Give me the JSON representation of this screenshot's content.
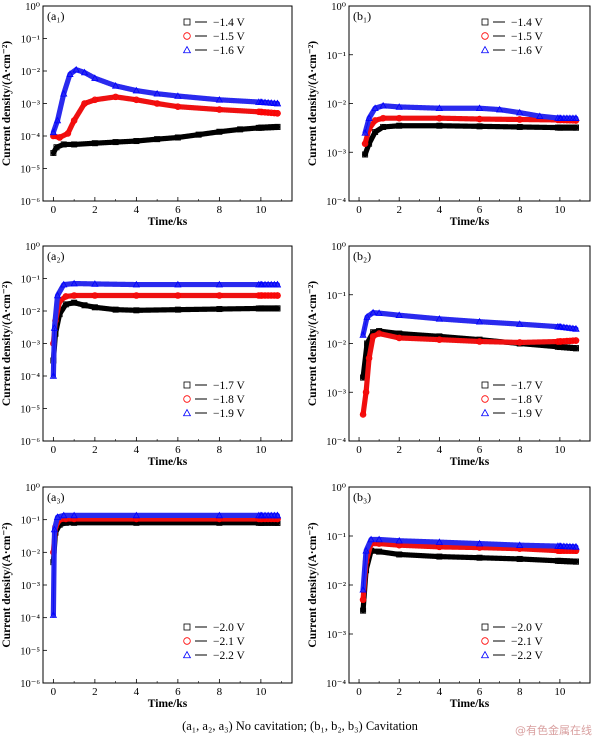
{
  "caption": "(a₁, a₂, a₃) No cavitation; (b₁, b₂, b₃) Cavitation",
  "watermark": "@有色金属在线",
  "colors": {
    "black": "#000000",
    "red": "#ff0000",
    "blue": "#0000ff",
    "black_fill": "#000000",
    "red_fill": "#ee1111",
    "blue_fill": "#2a2aee"
  },
  "markers": [
    "square",
    "circle",
    "triangle"
  ],
  "chart_data": [
    {
      "id": "a1",
      "panel_label": "(a₁)",
      "type": "scatter",
      "y_scale": "log",
      "xlabel": "Time/ks",
      "ylabel": "Current density/(A·cm⁻²)",
      "xlim": [
        -0.5,
        11.5
      ],
      "ylim_exp": [
        -6,
        0
      ],
      "x_ticks": [
        0,
        2,
        4,
        6,
        8,
        10
      ],
      "y_tick_labels": [
        "10⁻⁶",
        "10⁻⁵",
        "10⁻⁴",
        "10⁻³",
        "10⁻²",
        "10⁻¹",
        "10⁰"
      ],
      "legend": "top-right",
      "series": [
        {
          "name": "−1.4 V",
          "points": [
            [
              0,
              3e-05
            ],
            [
              0.15,
              4.5e-05
            ],
            [
              0.5,
              5.5e-05
            ],
            [
              1,
              5.5e-05
            ],
            [
              2,
              6e-05
            ],
            [
              3,
              6.5e-05
            ],
            [
              4,
              7e-05
            ],
            [
              5,
              8e-05
            ],
            [
              6,
              9e-05
            ],
            [
              7,
              0.00011
            ],
            [
              8,
              0.000135
            ],
            [
              9,
              0.00016
            ],
            [
              10,
              0.00018
            ],
            [
              10.8,
              0.00019
            ]
          ]
        },
        {
          "name": "−1.5 V",
          "points": [
            [
              0,
              0.0001
            ],
            [
              0.3,
              9e-05
            ],
            [
              0.7,
              0.00012
            ],
            [
              1,
              0.0003
            ],
            [
              1.5,
              0.001
            ],
            [
              2,
              0.0013
            ],
            [
              3,
              0.0016
            ],
            [
              4,
              0.0013
            ],
            [
              5,
              0.001
            ],
            [
              6,
              0.0008
            ],
            [
              8,
              0.00065
            ],
            [
              10,
              0.00055
            ],
            [
              10.8,
              0.0005
            ]
          ]
        },
        {
          "name": "−1.6 V",
          "points": [
            [
              0,
              0.00013
            ],
            [
              0.2,
              0.0003
            ],
            [
              0.5,
              0.002
            ],
            [
              0.8,
              0.008
            ],
            [
              1.1,
              0.011
            ],
            [
              1.5,
              0.009
            ],
            [
              2,
              0.006
            ],
            [
              3,
              0.0035
            ],
            [
              4,
              0.0025
            ],
            [
              5,
              0.002
            ],
            [
              6,
              0.0017
            ],
            [
              8,
              0.0013
            ],
            [
              10,
              0.0011
            ],
            [
              10.8,
              0.001
            ]
          ]
        }
      ]
    },
    {
      "id": "b1",
      "panel_label": "(b₁)",
      "type": "scatter",
      "y_scale": "log",
      "xlabel": "Time/ks",
      "ylabel": "Current density/(A·cm⁻²)",
      "xlim": [
        -0.5,
        11.5
      ],
      "ylim_exp": [
        -4,
        0
      ],
      "x_ticks": [
        0,
        2,
        4,
        6,
        8,
        10
      ],
      "y_tick_labels": [
        "10⁻⁴",
        "10⁻³",
        "10⁻²",
        "10⁻¹",
        "10⁰"
      ],
      "legend": "top-right",
      "series": [
        {
          "name": "−1.4 V",
          "points": [
            [
              0.3,
              0.0009
            ],
            [
              0.5,
              0.0015
            ],
            [
              0.8,
              0.0026
            ],
            [
              1.2,
              0.0033
            ],
            [
              2,
              0.0035
            ],
            [
              4,
              0.0035
            ],
            [
              6,
              0.0034
            ],
            [
              8,
              0.0033
            ],
            [
              10,
              0.0032
            ],
            [
              10.8,
              0.0032
            ]
          ]
        },
        {
          "name": "−1.5 V",
          "points": [
            [
              0.3,
              0.0015
            ],
            [
              0.5,
              0.003
            ],
            [
              0.8,
              0.0045
            ],
            [
              1.2,
              0.005
            ],
            [
              2,
              0.005
            ],
            [
              4,
              0.005
            ],
            [
              6,
              0.0048
            ],
            [
              8,
              0.0047
            ],
            [
              10,
              0.0046
            ],
            [
              10.8,
              0.0045
            ]
          ]
        },
        {
          "name": "−1.6 V",
          "points": [
            [
              0.3,
              0.0025
            ],
            [
              0.5,
              0.005
            ],
            [
              0.8,
              0.008
            ],
            [
              1.2,
              0.009
            ],
            [
              2,
              0.0085
            ],
            [
              4,
              0.008
            ],
            [
              6,
              0.008
            ],
            [
              7,
              0.0075
            ],
            [
              8,
              0.0065
            ],
            [
              9,
              0.0055
            ],
            [
              10,
              0.005
            ],
            [
              10.8,
              0.005
            ]
          ]
        }
      ]
    },
    {
      "id": "a2",
      "panel_label": "(a₂)",
      "type": "scatter",
      "y_scale": "log",
      "xlabel": "Time/ks",
      "ylabel": "Current density/(A·cm⁻²)",
      "xlim": [
        -0.5,
        11.5
      ],
      "ylim_exp": [
        -6,
        0
      ],
      "x_ticks": [
        0,
        2,
        4,
        6,
        8,
        10
      ],
      "y_tick_labels": [
        "10⁻⁶",
        "10⁻⁵",
        "10⁻⁴",
        "10⁻³",
        "10⁻²",
        "10⁻¹",
        "10⁰"
      ],
      "legend": "bottom-right",
      "series": [
        {
          "name": "−1.7 V",
          "points": [
            [
              0,
              0.0003
            ],
            [
              0.1,
              0.002
            ],
            [
              0.3,
              0.008
            ],
            [
              0.6,
              0.016
            ],
            [
              1,
              0.018
            ],
            [
              1.5,
              0.015
            ],
            [
              2,
              0.013
            ],
            [
              3,
              0.011
            ],
            [
              4,
              0.0105
            ],
            [
              6,
              0.011
            ],
            [
              8,
              0.0115
            ],
            [
              10,
              0.012
            ],
            [
              10.8,
              0.012
            ]
          ]
        },
        {
          "name": "−1.8 V",
          "points": [
            [
              0,
              0.001
            ],
            [
              0.1,
              0.005
            ],
            [
              0.3,
              0.02
            ],
            [
              0.6,
              0.028
            ],
            [
              1,
              0.03
            ],
            [
              2,
              0.03
            ],
            [
              4,
              0.03
            ],
            [
              6,
              0.03
            ],
            [
              8,
              0.03
            ],
            [
              10,
              0.03
            ],
            [
              10.8,
              0.03
            ]
          ]
        },
        {
          "name": "−1.9 V",
          "points": [
            [
              0,
              0.0001
            ],
            [
              0.05,
              0.003
            ],
            [
              0.2,
              0.03
            ],
            [
              0.5,
              0.065
            ],
            [
              1,
              0.07
            ],
            [
              2,
              0.068
            ],
            [
              4,
              0.065
            ],
            [
              6,
              0.065
            ],
            [
              8,
              0.065
            ],
            [
              10,
              0.065
            ],
            [
              10.8,
              0.065
            ]
          ]
        }
      ]
    },
    {
      "id": "b2",
      "panel_label": "(b₂)",
      "type": "scatter",
      "y_scale": "log",
      "xlabel": "Time/ks",
      "ylabel": "Current density/(A·cm⁻²)",
      "xlim": [
        -0.5,
        11.5
      ],
      "ylim_exp": [
        -4,
        0
      ],
      "x_ticks": [
        0,
        2,
        4,
        6,
        8,
        10
      ],
      "y_tick_labels": [
        "10⁻⁴",
        "10⁻³",
        "10⁻²",
        "10⁻¹",
        "10⁰"
      ],
      "legend": "bottom-right",
      "series": [
        {
          "name": "−1.7 V",
          "points": [
            [
              0.2,
              0.002
            ],
            [
              0.4,
              0.01
            ],
            [
              0.7,
              0.017
            ],
            [
              1,
              0.018
            ],
            [
              2,
              0.016
            ],
            [
              4,
              0.014
            ],
            [
              6,
              0.012
            ],
            [
              8,
              0.01
            ],
            [
              10,
              0.0085
            ],
            [
              10.8,
              0.008
            ]
          ]
        },
        {
          "name": "−1.8 V",
          "points": [
            [
              0.2,
              0.00035
            ],
            [
              0.35,
              0.001
            ],
            [
              0.5,
              0.005
            ],
            [
              0.7,
              0.014
            ],
            [
              1,
              0.016
            ],
            [
              2,
              0.013
            ],
            [
              4,
              0.012
            ],
            [
              6,
              0.011
            ],
            [
              8,
              0.0105
            ],
            [
              10,
              0.011
            ],
            [
              10.8,
              0.0115
            ]
          ]
        },
        {
          "name": "−1.9 V",
          "points": [
            [
              0.2,
              0.015
            ],
            [
              0.4,
              0.035
            ],
            [
              0.7,
              0.043
            ],
            [
              1,
              0.042
            ],
            [
              2,
              0.038
            ],
            [
              4,
              0.032
            ],
            [
              6,
              0.028
            ],
            [
              8,
              0.025
            ],
            [
              10,
              0.022
            ],
            [
              10.8,
              0.02
            ]
          ]
        }
      ]
    },
    {
      "id": "a3",
      "panel_label": "(a₃)",
      "type": "scatter",
      "y_scale": "log",
      "xlabel": "Time/ks",
      "ylabel": "Current density/(A·cm⁻²)",
      "xlim": [
        -0.5,
        11.5
      ],
      "ylim_exp": [
        -6,
        0
      ],
      "x_ticks": [
        0,
        2,
        4,
        6,
        8,
        10
      ],
      "y_tick_labels": [
        "10⁻⁶",
        "10⁻⁵",
        "10⁻⁴",
        "10⁻³",
        "10⁻²",
        "10⁻¹",
        "10⁰"
      ],
      "legend": "bottom-right",
      "series": [
        {
          "name": "−2.0 V",
          "points": [
            [
              0,
              0.005
            ],
            [
              0.1,
              0.04
            ],
            [
              0.3,
              0.07
            ],
            [
              0.6,
              0.08
            ],
            [
              1,
              0.08
            ],
            [
              4,
              0.08
            ],
            [
              8,
              0.08
            ],
            [
              10,
              0.08
            ],
            [
              10.8,
              0.08
            ]
          ]
        },
        {
          "name": "−2.1 V",
          "points": [
            [
              0,
              0.01
            ],
            [
              0.1,
              0.06
            ],
            [
              0.3,
              0.1
            ],
            [
              0.6,
              0.105
            ],
            [
              1,
              0.105
            ],
            [
              4,
              0.105
            ],
            [
              8,
              0.105
            ],
            [
              10,
              0.105
            ],
            [
              10.8,
              0.105
            ]
          ]
        },
        {
          "name": "−2.2 V",
          "points": [
            [
              0,
              0.00012
            ],
            [
              0.05,
              0.05
            ],
            [
              0.2,
              0.12
            ],
            [
              0.5,
              0.135
            ],
            [
              1,
              0.135
            ],
            [
              4,
              0.135
            ],
            [
              8,
              0.135
            ],
            [
              10,
              0.135
            ],
            [
              10.8,
              0.135
            ]
          ]
        }
      ]
    },
    {
      "id": "b3",
      "panel_label": "(b₃)",
      "type": "scatter",
      "y_scale": "log",
      "xlabel": "Time/ks",
      "ylabel": "Current density/(A·cm⁻²)",
      "xlim": [
        -0.5,
        11.5
      ],
      "ylim_exp": [
        -4,
        0
      ],
      "x_ticks": [
        0,
        2,
        4,
        6,
        8,
        10
      ],
      "y_tick_labels": [
        "10⁻⁴",
        "10⁻³",
        "10⁻²",
        "10⁻¹",
        "10⁰"
      ],
      "legend": "bottom-right",
      "series": [
        {
          "name": "−2.0 V",
          "points": [
            [
              0.2,
              0.003
            ],
            [
              0.35,
              0.02
            ],
            [
              0.6,
              0.05
            ],
            [
              1,
              0.048
            ],
            [
              2,
              0.042
            ],
            [
              4,
              0.038
            ],
            [
              6,
              0.036
            ],
            [
              8,
              0.034
            ],
            [
              10,
              0.031
            ],
            [
              10.8,
              0.03
            ]
          ]
        },
        {
          "name": "−2.1 V",
          "points": [
            [
              0.2,
              0.005
            ],
            [
              0.35,
              0.03
            ],
            [
              0.6,
              0.07
            ],
            [
              1,
              0.07
            ],
            [
              2,
              0.065
            ],
            [
              4,
              0.06
            ],
            [
              6,
              0.058
            ],
            [
              8,
              0.055
            ],
            [
              10,
              0.05
            ],
            [
              10.8,
              0.05
            ]
          ]
        },
        {
          "name": "−2.2 V",
          "points": [
            [
              0.2,
              0.008
            ],
            [
              0.35,
              0.05
            ],
            [
              0.6,
              0.085
            ],
            [
              1,
              0.085
            ],
            [
              2,
              0.08
            ],
            [
              4,
              0.075
            ],
            [
              6,
              0.07
            ],
            [
              8,
              0.065
            ],
            [
              10,
              0.062
            ],
            [
              10.8,
              0.06
            ]
          ]
        }
      ]
    }
  ]
}
